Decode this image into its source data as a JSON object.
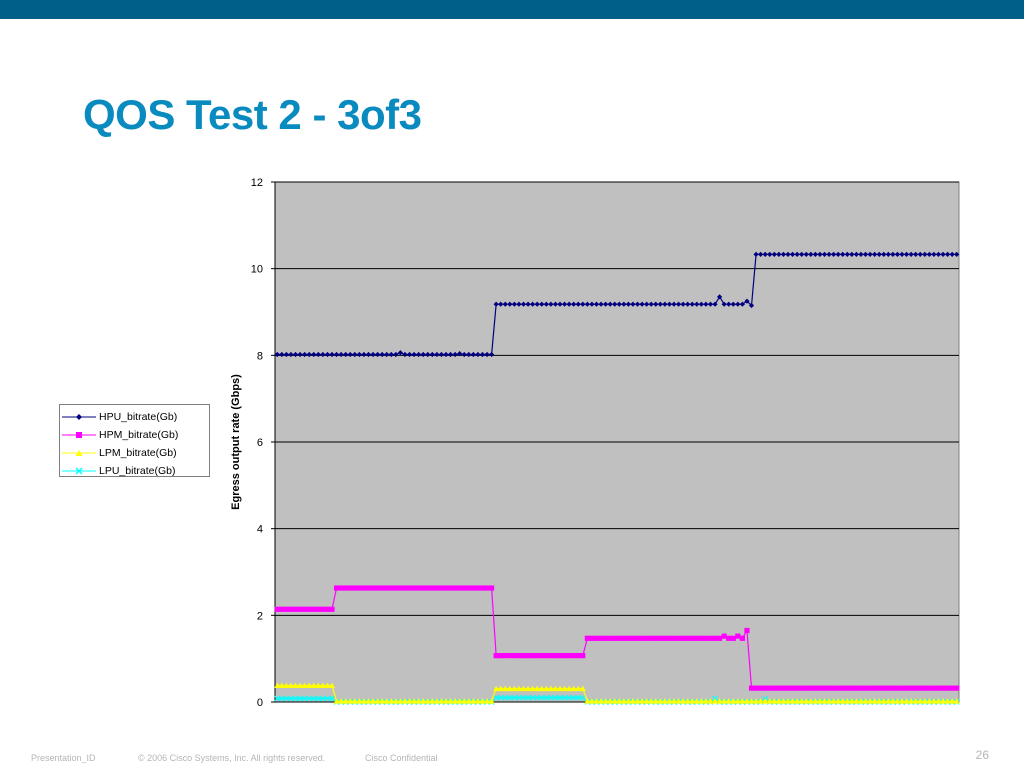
{
  "slide": {
    "title": "QOS Test 2 - 3of3",
    "band_color": "#005f88",
    "title_color": "#0a8bbf",
    "page_number": "26",
    "footer": {
      "presentation_id": "Presentation_ID",
      "copyright": "© 2006 Cisco Systems, Inc. All rights reserved.",
      "confidential": "Cisco Confidential"
    }
  },
  "chart_data": {
    "type": "line",
    "title": "",
    "xlabel": "",
    "ylabel": "Egress output rate (Gbps)",
    "ylim": [
      0,
      12
    ],
    "yticks": [
      "0",
      "2",
      "4",
      "6",
      "8",
      "10",
      "12"
    ],
    "x_points": 150,
    "grid": "horizontal",
    "plot_background": "#c0c0c0",
    "legend_position": "left",
    "series": [
      {
        "name": "HPU_bitrate(Gb)",
        "color": "#000080",
        "marker": "diamond",
        "segments": [
          {
            "from": 0,
            "to": 48,
            "value": 8.02
          },
          {
            "from": 48,
            "to": 104,
            "value": 9.18
          },
          {
            "from": 104,
            "to": 149,
            "value": 10.33
          }
        ],
        "spikes": [
          [
            97,
            9.35
          ],
          [
            103,
            9.25
          ],
          [
            104,
            9.15
          ],
          [
            27,
            8.06
          ],
          [
            40,
            8.04
          ]
        ]
      },
      {
        "name": "HPM_bitrate(Gb)",
        "color": "#ff00ff",
        "marker": "square",
        "segments": [
          {
            "from": 0,
            "to": 13,
            "value": 2.14
          },
          {
            "from": 13,
            "to": 48,
            "value": 2.63
          },
          {
            "from": 48,
            "to": 68,
            "value": 1.07
          },
          {
            "from": 68,
            "to": 104,
            "value": 1.47
          },
          {
            "from": 104,
            "to": 149,
            "value": 0.32
          }
        ],
        "spikes": [
          [
            103,
            1.65
          ],
          [
            101,
            1.52
          ],
          [
            98,
            1.52
          ]
        ]
      },
      {
        "name": "LPM_bitrate(Gb)",
        "color": "#ffff00",
        "marker": "triangle",
        "segments": [
          {
            "from": 0,
            "to": 13,
            "value": 0.38
          },
          {
            "from": 13,
            "to": 48,
            "value": 0.02
          },
          {
            "from": 48,
            "to": 68,
            "value": 0.31
          },
          {
            "from": 68,
            "to": 149,
            "value": 0.02
          }
        ],
        "spikes": []
      },
      {
        "name": "LPU_bitrate(Gb)",
        "color": "#00ffff",
        "marker": "x",
        "segments": [
          {
            "from": 0,
            "to": 13,
            "value": 0.08
          },
          {
            "from": 13,
            "to": 48,
            "value": 0.0
          },
          {
            "from": 48,
            "to": 68,
            "value": 0.1
          },
          {
            "from": 68,
            "to": 149,
            "value": 0.0
          }
        ],
        "spikes": [
          [
            96,
            0.08
          ],
          [
            107,
            0.07
          ]
        ]
      }
    ]
  }
}
